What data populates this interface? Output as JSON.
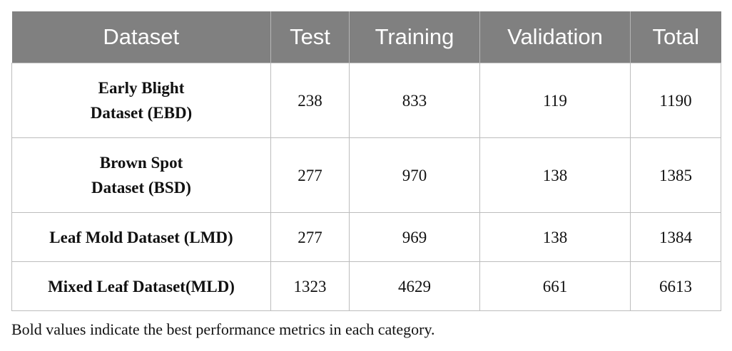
{
  "table": {
    "header": [
      "Dataset",
      "Test",
      "Training",
      "Validation",
      "Total"
    ],
    "rows": [
      [
        "Early Blight\nDataset (EBD)",
        238,
        833,
        119,
        1190
      ],
      [
        "Brown Spot\nDataset (BSD)",
        277,
        970,
        138,
        1385
      ],
      [
        "Leaf Mold Dataset (LMD)",
        277,
        969,
        138,
        1384
      ],
      [
        "Mixed Leaf Dataset(MLD)",
        1323,
        4629,
        661,
        6613
      ]
    ]
  },
  "footnote": "Bold values indicate the best performance metrics in each category."
}
